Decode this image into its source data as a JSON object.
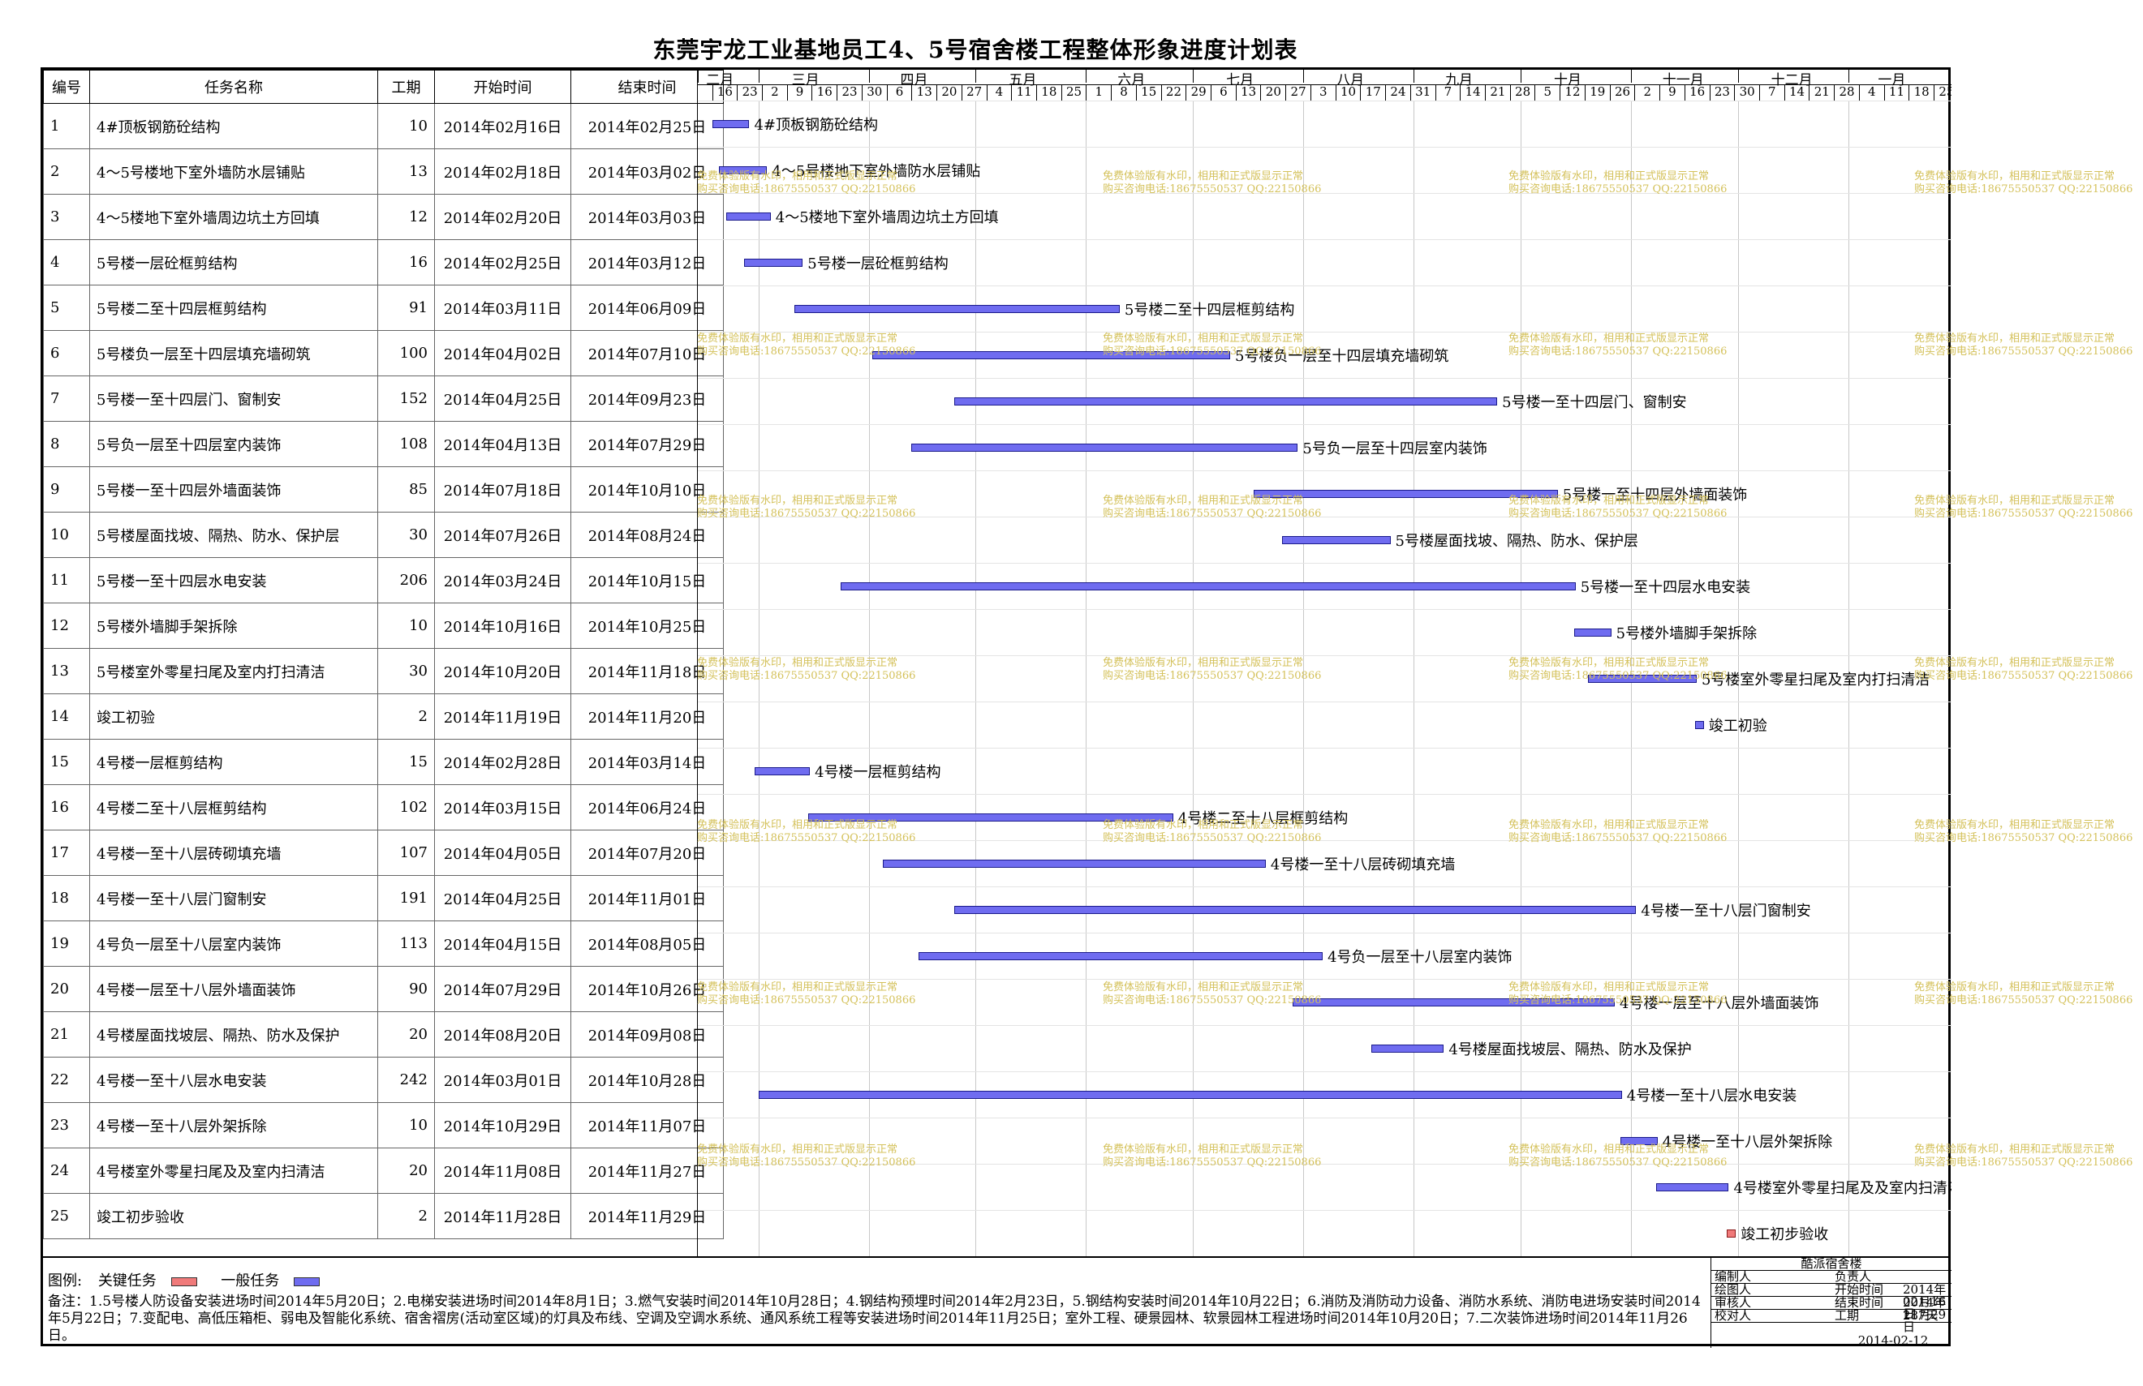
{
  "title": "东莞宇龙工业基地员工4、5号宿舍楼工程整体形象进度计划表",
  "headers": {
    "id": "编号",
    "name": "任务名称",
    "duration": "工期",
    "start": "开始时间",
    "end": "结束时间"
  },
  "timeline": {
    "months": [
      "二月",
      "三月",
      "四月",
      "五月",
      "六月",
      "七月",
      "八月",
      "九月",
      "十月",
      "十一月",
      "十二月",
      "一月"
    ],
    "day_ticks": [
      "16",
      "23",
      "2",
      "9",
      "16",
      "23",
      "30",
      "6",
      "13",
      "20",
      "27",
      "4",
      "11",
      "18",
      "25",
      "1",
      "8",
      "15",
      "22",
      "29",
      "6",
      "13",
      "20",
      "27",
      "3",
      "10",
      "17",
      "24",
      "31",
      "7",
      "14",
      "21",
      "28",
      "5",
      "12",
      "19",
      "26",
      "2",
      "9",
      "16",
      "23",
      "30",
      "7",
      "14",
      "21",
      "28",
      "4",
      "11",
      "18",
      "25"
    ]
  },
  "tasks": [
    {
      "id": "1",
      "name": "4#顶板钢筋砼结构",
      "duration": "10",
      "start": "2014年02月16日",
      "end": "2014年02月25日",
      "critical": false
    },
    {
      "id": "2",
      "name": "4～5号楼地下室外墙防水层铺贴",
      "duration": "13",
      "start": "2014年02月18日",
      "end": "2014年03月02日",
      "critical": false
    },
    {
      "id": "3",
      "name": "4～5楼地下室外墙周边坑土方回填",
      "duration": "12",
      "start": "2014年02月20日",
      "end": "2014年03月03日",
      "critical": false
    },
    {
      "id": "4",
      "name": "5号楼一层砼框剪结构",
      "duration": "16",
      "start": "2014年02月25日",
      "end": "2014年03月12日",
      "critical": false
    },
    {
      "id": "5",
      "name": "5号楼二至十四层框剪结构",
      "duration": "91",
      "start": "2014年03月11日",
      "end": "2014年06月09日",
      "critical": false
    },
    {
      "id": "6",
      "name": "5号楼负一层至十四层填充墙砌筑",
      "duration": "100",
      "start": "2014年04月02日",
      "end": "2014年07月10日",
      "critical": false
    },
    {
      "id": "7",
      "name": "5号楼一至十四层门、窗制安",
      "duration": "152",
      "start": "2014年04月25日",
      "end": "2014年09月23日",
      "critical": false
    },
    {
      "id": "8",
      "name": "5号负一层至十四层室内装饰",
      "duration": "108",
      "start": "2014年04月13日",
      "end": "2014年07月29日",
      "critical": false
    },
    {
      "id": "9",
      "name": "5号楼一至十四层外墙面装饰",
      "duration": "85",
      "start": "2014年07月18日",
      "end": "2014年10月10日",
      "critical": false
    },
    {
      "id": "10",
      "name": "5号楼屋面找坡、隔热、防水、保护层",
      "duration": "30",
      "start": "2014年07月26日",
      "end": "2014年08月24日",
      "critical": false
    },
    {
      "id": "11",
      "name": "5号楼一至十四层水电安装",
      "duration": "206",
      "start": "2014年03月24日",
      "end": "2014年10月15日",
      "critical": false
    },
    {
      "id": "12",
      "name": "5号楼外墙脚手架拆除",
      "duration": "10",
      "start": "2014年10月16日",
      "end": "2014年10月25日",
      "critical": false
    },
    {
      "id": "13",
      "name": "5号楼室外零星扫尾及室内打扫清洁",
      "duration": "30",
      "start": "2014年10月20日",
      "end": "2014年11月18日",
      "critical": false
    },
    {
      "id": "14",
      "name": "竣工初验",
      "duration": "2",
      "start": "2014年11月19日",
      "end": "2014年11月20日",
      "critical": false
    },
    {
      "id": "15",
      "name": "4号楼一层框剪结构",
      "duration": "15",
      "start": "2014年02月28日",
      "end": "2014年03月14日",
      "critical": false
    },
    {
      "id": "16",
      "name": "4号楼二至十八层框剪结构",
      "duration": "102",
      "start": "2014年03月15日",
      "end": "2014年06月24日",
      "critical": false
    },
    {
      "id": "17",
      "name": "4号楼一至十八层砖砌填充墙",
      "duration": "107",
      "start": "2014年04月05日",
      "end": "2014年07月20日",
      "critical": false
    },
    {
      "id": "18",
      "name": "4号楼一至十八层门窗制安",
      "duration": "191",
      "start": "2014年04月25日",
      "end": "2014年11月01日",
      "critical": false
    },
    {
      "id": "19",
      "name": "4号负一层至十八层室内装饰",
      "duration": "113",
      "start": "2014年04月15日",
      "end": "2014年08月05日",
      "critical": false
    },
    {
      "id": "20",
      "name": "4号楼一层至十八层外墙面装饰",
      "duration": "90",
      "start": "2014年07月29日",
      "end": "2014年10月26日",
      "critical": false
    },
    {
      "id": "21",
      "name": "4号楼屋面找坡层、隔热、防水及保护",
      "duration": "20",
      "start": "2014年08月20日",
      "end": "2014年09月08日",
      "critical": false
    },
    {
      "id": "22",
      "name": "4号楼一至十八层水电安装",
      "duration": "242",
      "start": "2014年03月01日",
      "end": "2014年10月28日",
      "critical": false
    },
    {
      "id": "23",
      "name": "4号楼一至十八层外架拆除",
      "duration": "10",
      "start": "2014年10月29日",
      "end": "2014年11月07日",
      "critical": false
    },
    {
      "id": "24",
      "name": "4号楼室外零星扫尾及及室内扫清洁",
      "duration": "20",
      "start": "2014年11月08日",
      "end": "2014年11月27日",
      "critical": false
    },
    {
      "id": "25",
      "name": "竣工初步验收",
      "duration": "2",
      "start": "2014年11月28日",
      "end": "2014年11月29日",
      "critical": true
    }
  ],
  "legend": {
    "label": "图例:",
    "critical": "关键任务",
    "normal": "一般任务"
  },
  "notes": "备注：1.5号楼人防设备安装进场时间2014年5月20日；2.电梯安装进场时间2014年8月1日；3.燃气安装时间2014年10月28日；4.钢结构预埋时间2014年2月23日，5.钢结构安装时间2014年10月22日；6.消防及消防动力设备、消防水系统、消防电进场安装时间2014年5月22日；7.变配电、高低压箱柜、弱电及智能化系统、宿舍褶房(活动室区域)的灯具及布线、空调及空调水系统、通风系统工程等安装进场时间2014年11月25日；室外工程、硬景园林、软景园林工程进场时间2014年10月20日；7.二次装饰进场时间2014年11月26日。",
  "infobox": {
    "title": "酷派宿舍楼",
    "rows": [
      {
        "label": "编制人",
        "value": "负责人"
      },
      {
        "label": "绘图人",
        "value": "开始时间"
      },
      {
        "label": "审核人",
        "value": "结束时间"
      },
      {
        "label": "校对人",
        "value": "工期"
      }
    ],
    "start_date": "2014年02月16日",
    "end_date": "2014年11月29日",
    "duration": "287天",
    "print_date": "2014-02-12"
  },
  "watermark": {
    "line1": "免费体验版有水印，相用和正式版显示正常",
    "line2": "购买咨询电话:18675550537 QQ:22150866"
  },
  "colors": {
    "normal_bar": "#6f6cf0",
    "critical_bar": "#f07a7a",
    "watermark": "#d4c15a"
  }
}
